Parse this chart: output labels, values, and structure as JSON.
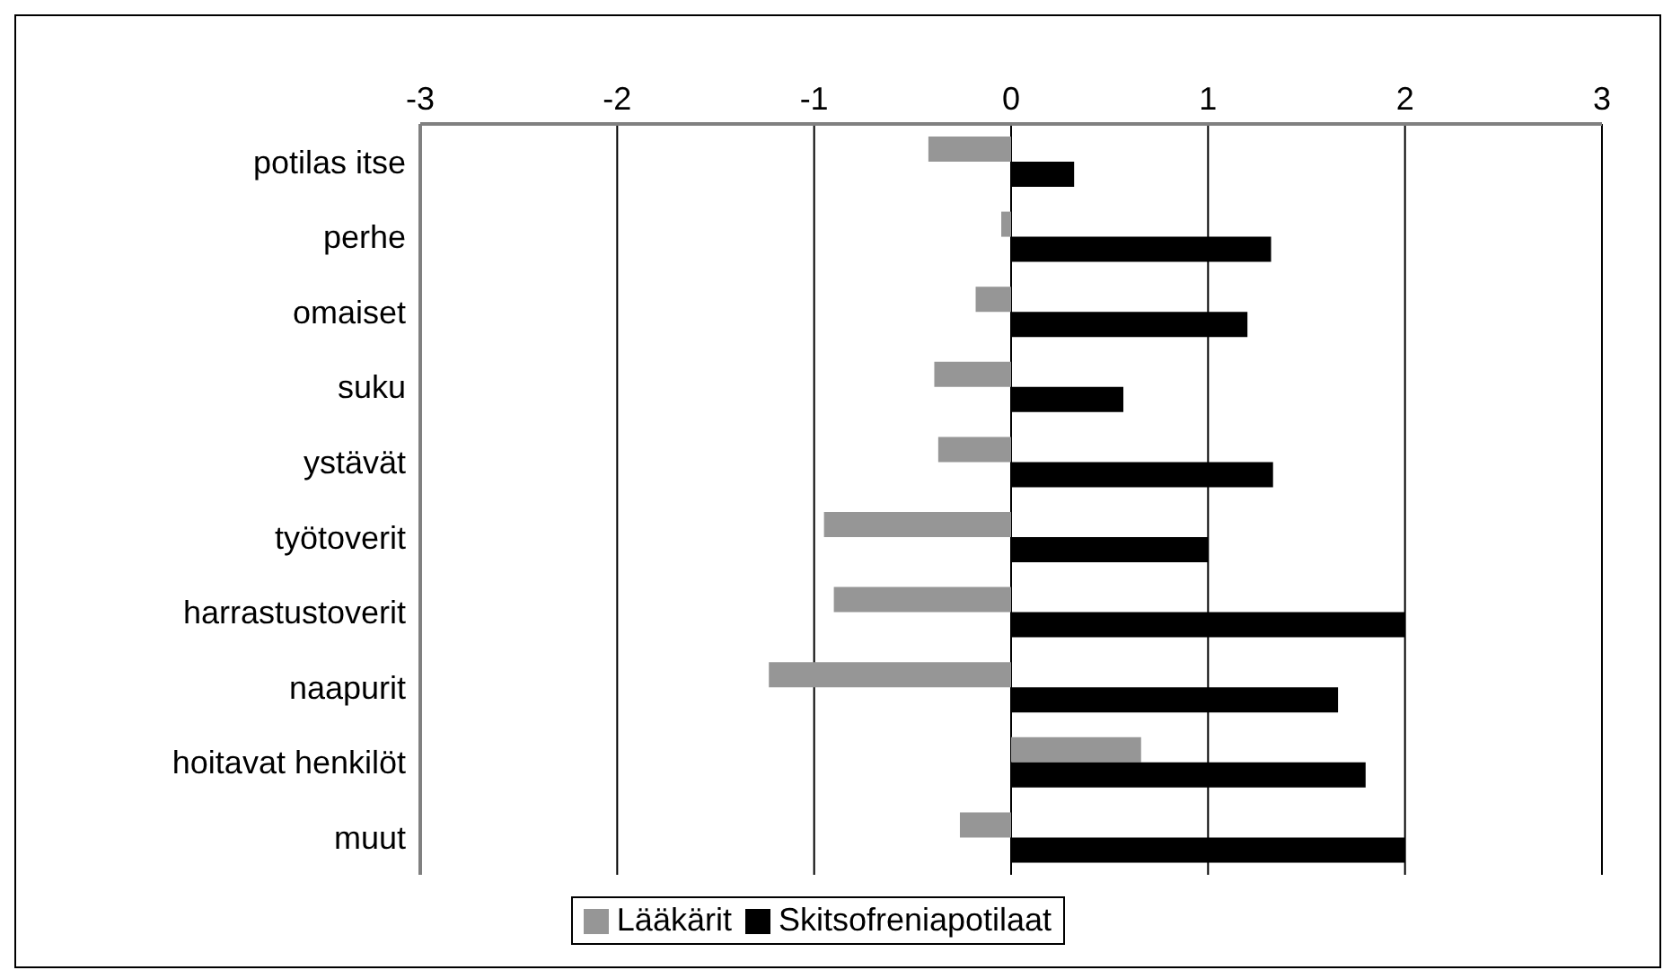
{
  "chart_data": {
    "type": "bar",
    "orientation": "horizontal",
    "categories": [
      "potilas itse",
      "perhe",
      "omaiset",
      "suku",
      "ystävät",
      "työtoverit",
      "harrastustoverit",
      "naapurit",
      "hoitavat henkilöt",
      "muut"
    ],
    "series": [
      {
        "name": "Lääkärit",
        "color": "#969696",
        "values": [
          -0.42,
          -0.05,
          -0.18,
          -0.39,
          -0.37,
          -0.95,
          -0.9,
          -1.23,
          0.66,
          -0.26
        ]
      },
      {
        "name": "Skitsofreniapotilaat",
        "color": "#000000",
        "values": [
          0.32,
          1.32,
          1.2,
          0.57,
          1.33,
          1.0,
          2.0,
          1.66,
          1.8,
          2.0
        ]
      }
    ],
    "xlim": [
      -3,
      3
    ],
    "xticks": [
      -3,
      -2,
      -1,
      0,
      1,
      2,
      3
    ],
    "grid": "x",
    "legend": "bottom"
  }
}
